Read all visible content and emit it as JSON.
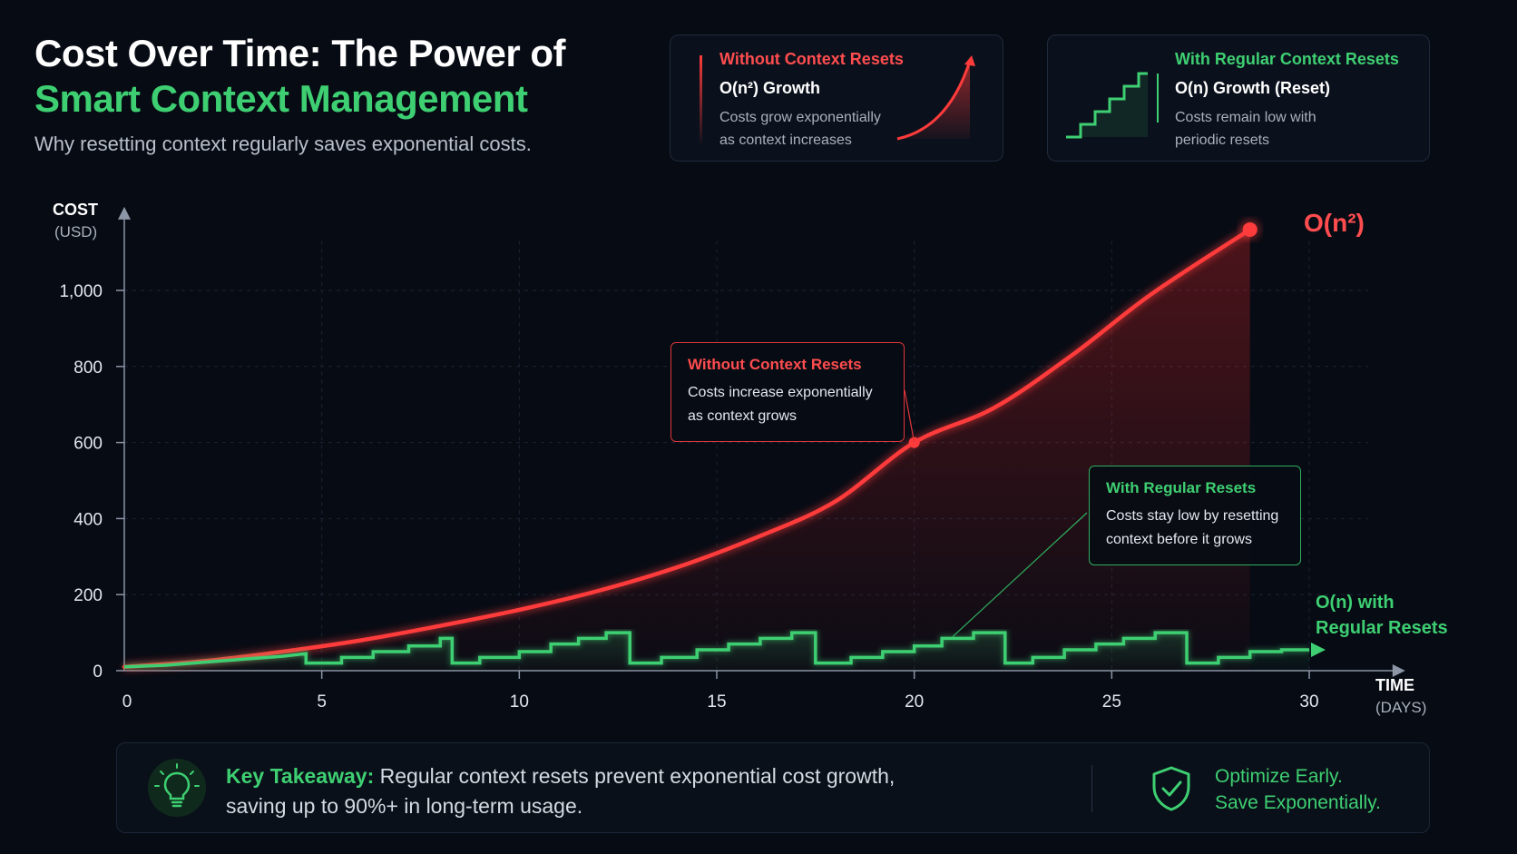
{
  "header": {
    "title_line1": "Cost Over Time: The Power of",
    "title_line2": "Smart Context Management",
    "subtitle": "Why resetting context regularly saves exponential costs."
  },
  "cards": {
    "without": {
      "title": "Without Context Resets",
      "subtitle": "O(n²) Growth",
      "description": "Costs grow exponentially\nas context increases"
    },
    "with": {
      "title": "With Regular Context Resets",
      "subtitle": "O(n) Growth (Reset)",
      "description": "Costs remain low with\nperiodic resets"
    }
  },
  "callouts": {
    "without": {
      "title": "Without Context Resets",
      "description": "Costs increase exponentially\nas context grows"
    },
    "with": {
      "title": "With Regular Resets",
      "description": "Costs stay low by resetting\ncontext before it grows"
    }
  },
  "series_tags": {
    "quadratic": "O(n²)",
    "linear_line1": "O(n) with",
    "linear_line2": "Regular Resets"
  },
  "axes": {
    "y_title": "COST",
    "y_unit": "(USD)",
    "x_title": "TIME",
    "x_unit": "(DAYS)"
  },
  "takeaway": {
    "lead": "Key Takeaway:",
    "line1": " Regular context resets prevent exponential cost growth,",
    "line2": "saving up to 90%+ in long-term usage.",
    "optimize": "Optimize Early.\nSave Exponentially."
  },
  "colors": {
    "red": "#ff3b3b",
    "green": "#3ecf72",
    "background": "#070b14"
  },
  "icons": {
    "takeaway": "lightbulb-icon",
    "optimize": "shield-check-icon"
  },
  "chart_data": {
    "type": "line",
    "xlabel": "TIME (DAYS)",
    "ylabel": "COST (USD)",
    "xlim": [
      0,
      32
    ],
    "ylim": [
      0,
      1200
    ],
    "x_ticks": [
      0,
      5,
      10,
      15,
      20,
      25,
      30
    ],
    "y_ticks": [
      0,
      200,
      400,
      600,
      800,
      1000
    ],
    "y_tick_labels": [
      "0",
      "200",
      "400",
      "600",
      "800",
      "1,000"
    ],
    "grid": true,
    "series": [
      {
        "name": "Without Context Resets",
        "color": "#ff3b3b",
        "x": [
          0,
          2,
          4,
          6,
          8,
          10,
          12,
          14,
          16,
          18,
          20,
          22,
          24,
          26,
          28.5
        ],
        "y": [
          10,
          25,
          50,
          80,
          118,
          160,
          210,
          272,
          350,
          445,
          600,
          690,
          830,
          990,
          1160
        ]
      },
      {
        "name": "With Regular Resets",
        "color": "#3ecf72",
        "x": [
          0,
          1,
          2,
          3,
          4,
          4.6,
          4.6,
          5,
          5.5,
          5.5,
          6.3,
          6.3,
          7.2,
          7.2,
          8,
          8,
          8.3,
          8.3,
          9,
          9,
          10,
          10,
          10.8,
          10.8,
          11.5,
          11.5,
          12.2,
          12.2,
          12.8,
          12.8,
          13.6,
          13.6,
          14.5,
          14.5,
          15.3,
          15.3,
          16.1,
          16.1,
          16.9,
          16.9,
          17.5,
          17.5,
          18.4,
          18.4,
          19.2,
          19.2,
          20,
          20,
          20.7,
          20.7,
          21.5,
          21.5,
          22.3,
          22.3,
          23,
          23,
          23.8,
          23.8,
          24.6,
          24.6,
          25.3,
          25.3,
          26.1,
          26.1,
          26.9,
          26.9,
          27.7,
          27.7,
          28.5,
          28.5,
          29.3,
          29.3,
          30
        ],
        "y": [
          10,
          14,
          22,
          30,
          38,
          45,
          20,
          20,
          20,
          35,
          35,
          50,
          50,
          65,
          65,
          85,
          85,
          20,
          20,
          35,
          35,
          50,
          50,
          70,
          70,
          85,
          85,
          100,
          100,
          20,
          20,
          35,
          35,
          55,
          55,
          70,
          70,
          85,
          85,
          100,
          100,
          20,
          20,
          35,
          35,
          50,
          50,
          65,
          65,
          85,
          85,
          100,
          100,
          20,
          20,
          35,
          35,
          55,
          55,
          70,
          70,
          85,
          85,
          100,
          100,
          20,
          20,
          35,
          35,
          50,
          50,
          55,
          55
        ]
      }
    ],
    "annotations": [
      {
        "text": "O(n²)",
        "x": 28.5,
        "y": 1160
      },
      {
        "text": "O(n) with Regular Resets",
        "x": 30,
        "y": 55
      }
    ]
  }
}
